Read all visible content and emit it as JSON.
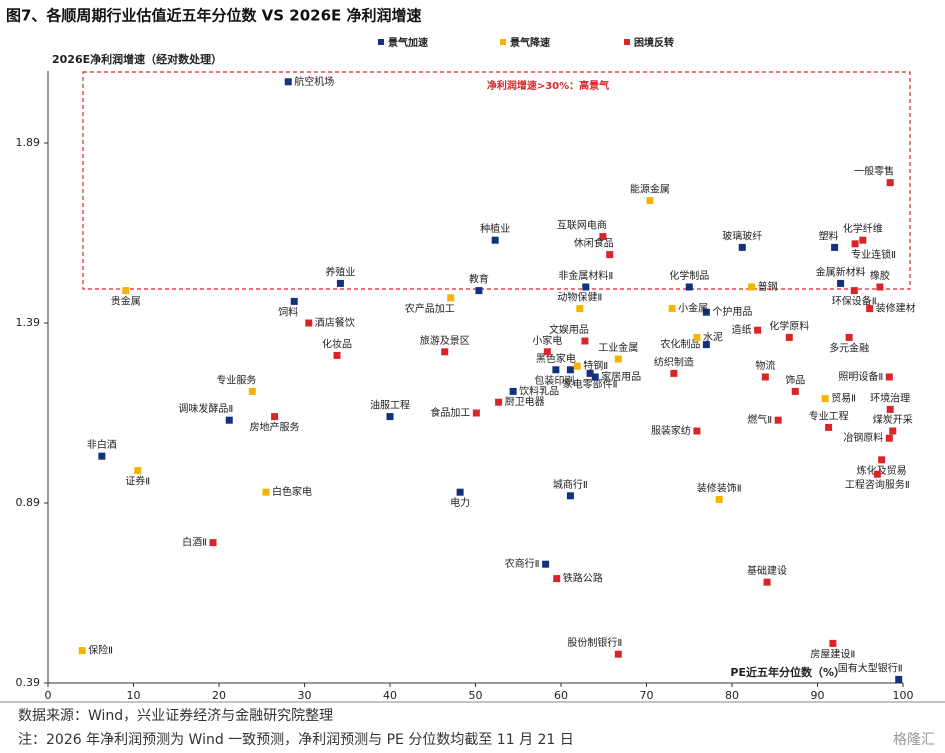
{
  "chart_data": {
    "type": "scatter",
    "title": "图7、各顺周期行业估值近五年分位数 VS 2026E 净利润增速",
    "y_label": "2026E净利润增速（经对数处理）",
    "x_label": "PE近五年分位数（%）",
    "annotation": "净利润增速>30%：高景气",
    "source": "数据来源：Wind，兴业证券经济与金融研究院整理",
    "note": "注：2026 年净利润预测为 Wind 一致预测，净利润预测与 PE 分位数均截至 11 月 21 日",
    "logo": "格隆汇",
    "xlim": [
      0,
      100
    ],
    "ylim": [
      0.39,
      2.09
    ],
    "xticks": [
      0,
      10,
      20,
      30,
      40,
      50,
      60,
      70,
      80,
      90,
      100
    ],
    "yticks": [
      0.39,
      0.89,
      1.39,
      1.89
    ],
    "series": [
      {
        "name": "景气加速",
        "color": "#12317e",
        "labels": [
          "航空机场",
          "饲料",
          "养殖业",
          "教育",
          "种植业",
          "非金属材料Ⅱ",
          "玻璃玻纤",
          "塑料",
          "金属新材料",
          "化学制品",
          "个护用品",
          "农化制品",
          "黑色家电",
          "包装印刷",
          "家电零部件Ⅱ",
          "家居用品",
          "饮料乳品",
          "调味发酵品Ⅱ",
          "油服工程",
          "非白酒",
          "电力",
          "城商行Ⅱ",
          "农商行Ⅱ",
          "国有大型银行Ⅱ"
        ],
        "x": [
          28.1,
          28.8,
          34.2,
          50.4,
          52.3,
          62.9,
          81.2,
          92.0,
          92.7,
          75.0,
          77.0,
          77.0,
          59.4,
          61.1,
          63.4,
          64.0,
          54.4,
          21.2,
          40.0,
          6.3,
          48.2,
          61.1,
          58.2,
          99.5
        ],
        "values": [
          2.06,
          1.45,
          1.5,
          1.48,
          1.62,
          1.49,
          1.6,
          1.6,
          1.5,
          1.49,
          1.42,
          1.33,
          1.26,
          1.26,
          1.25,
          1.24,
          1.2,
          1.12,
          1.13,
          1.02,
          0.92,
          0.91,
          0.72,
          0.4
        ]
      },
      {
        "name": "景气降速",
        "color": "#f5b400",
        "labels": [
          "贵金属",
          "农产品加工",
          "能源金属",
          "动物保健Ⅱ",
          "普钢",
          "小金属",
          "水泥",
          "工业金属",
          "特钢Ⅱ",
          "专业服务",
          "证券Ⅱ",
          "白色家电",
          "装修装饰Ⅱ",
          "贸易Ⅱ",
          "保险Ⅱ"
        ],
        "x": [
          9.1,
          47.1,
          70.4,
          62.2,
          82.3,
          73.0,
          75.9,
          66.7,
          61.9,
          23.9,
          10.5,
          25.5,
          78.5,
          90.9,
          4.0
        ],
        "values": [
          1.48,
          1.46,
          1.73,
          1.43,
          1.49,
          1.43,
          1.35,
          1.29,
          1.27,
          1.2,
          0.98,
          0.92,
          0.9,
          1.18,
          0.48
        ]
      },
      {
        "name": "困境反转",
        "color": "#d9252a",
        "labels": [
          "互联网电商",
          "休闲食品",
          "化学纤维",
          "专业连锁Ⅱ",
          "一般零售",
          "环保设备Ⅱ",
          "橡胶",
          "装修建材",
          "酒店餐饮",
          "造纸",
          "化学原料",
          "多元金融",
          "文娱用品",
          "纺织制造",
          "小家电",
          "旅游及景区",
          "化妆品",
          "厨卫电器",
          "房地产服务",
          "食品加工",
          "服装家纺",
          "物流",
          "饰品",
          "照明设备Ⅱ",
          "环境治理",
          "燃气Ⅱ",
          "专业工程",
          "煤炭开采",
          "冶钢原料",
          "炼化及贸易",
          "工程咨询服务Ⅱ",
          "白酒Ⅱ",
          "铁路公路",
          "基础建设",
          "股份制银行Ⅱ",
          "房屋建设Ⅱ"
        ],
        "x": [
          64.9,
          65.7,
          95.3,
          94.4,
          98.5,
          94.3,
          97.3,
          96.1,
          30.5,
          83.0,
          86.7,
          93.7,
          62.8,
          73.2,
          58.4,
          46.4,
          33.8,
          52.7,
          26.5,
          50.1,
          75.9,
          83.9,
          87.4,
          98.4,
          98.5,
          85.4,
          91.3,
          98.8,
          98.4,
          97.5,
          97.0,
          19.3,
          59.5,
          84.1,
          66.7,
          91.8
        ],
        "values": [
          1.63,
          1.58,
          1.62,
          1.61,
          1.78,
          1.48,
          1.49,
          1.43,
          1.39,
          1.37,
          1.35,
          1.35,
          1.34,
          1.25,
          1.31,
          1.31,
          1.3,
          1.17,
          1.13,
          1.14,
          1.09,
          1.24,
          1.2,
          1.24,
          1.15,
          1.12,
          1.1,
          1.09,
          1.07,
          1.01,
          0.97,
          0.78,
          0.68,
          0.67,
          0.47,
          0.5
        ]
      }
    ]
  }
}
